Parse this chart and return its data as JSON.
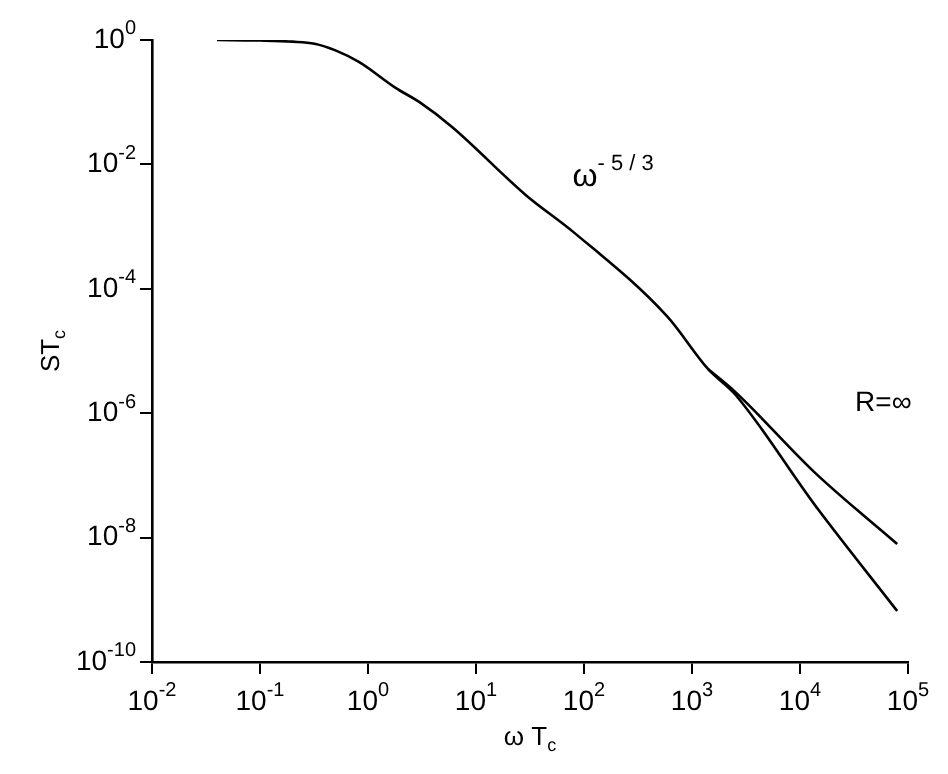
{
  "chart_data": {
    "type": "line",
    "xlabel": "ω T$_{c}$",
    "ylabel": "ST$_{c}$",
    "log": "xy",
    "grid": false,
    "legend": false,
    "marker": "none",
    "line_style": "solid",
    "xlim": [
      0.01,
      100000
    ],
    "ylim": [
      1e-10,
      1
    ],
    "xticks": [
      {
        "value": 0.01,
        "label": "10$^{-2}$"
      },
      {
        "value": 0.1,
        "label": "10$^{-1}$"
      },
      {
        "value": 1,
        "label": "10$^{0}$"
      },
      {
        "value": 10,
        "label": "10$^{1}$"
      },
      {
        "value": 100,
        "label": "10$^{2}$"
      },
      {
        "value": 1000,
        "label": "10$^{3}$"
      },
      {
        "value": 10000,
        "label": "10$^{4}$"
      },
      {
        "value": 100000,
        "label": "10$^{5}$"
      }
    ],
    "yticks": [
      {
        "value": 1e-10,
        "label": "10$^{-10}$"
      },
      {
        "value": 1e-08,
        "label": "10$^{-8}$"
      },
      {
        "value": 1e-06,
        "label": "10$^{-6}$"
      },
      {
        "value": 0.0001,
        "label": "10$^{-4}$"
      },
      {
        "value": 0.01,
        "label": "10$^{-2}$"
      },
      {
        "value": 1,
        "label": "10$^{0}$"
      }
    ],
    "annotations": [
      "ω$^{- 5 / 3}$"
    ],
    "series": [
      {
        "color": "#000000",
        "x": [
          0.04,
          0.1,
          0.2,
          0.32,
          0.5,
          0.83,
          1.8,
          3,
          6,
          29,
          81,
          589,
          1413,
          2512,
          13800,
          79400
        ],
        "values": [
          1,
          0.98,
          0.94,
          0.87,
          0.68,
          0.44,
          0.17,
          0.1,
          0.04,
          0.0032,
          0.0008,
          3.6e-05,
          5.1e-06,
          2e-06,
          3.3e-08,
          6.6e-10
        ]
      },
      {
        "name": "R=∞",
        "color": "#000000",
        "x": [
          1413,
          2512,
          13800,
          79400
        ],
        "values": [
          5.1e-06,
          2.2e-06,
          1.1e-07,
          7.9e-09
        ]
      }
    ]
  }
}
